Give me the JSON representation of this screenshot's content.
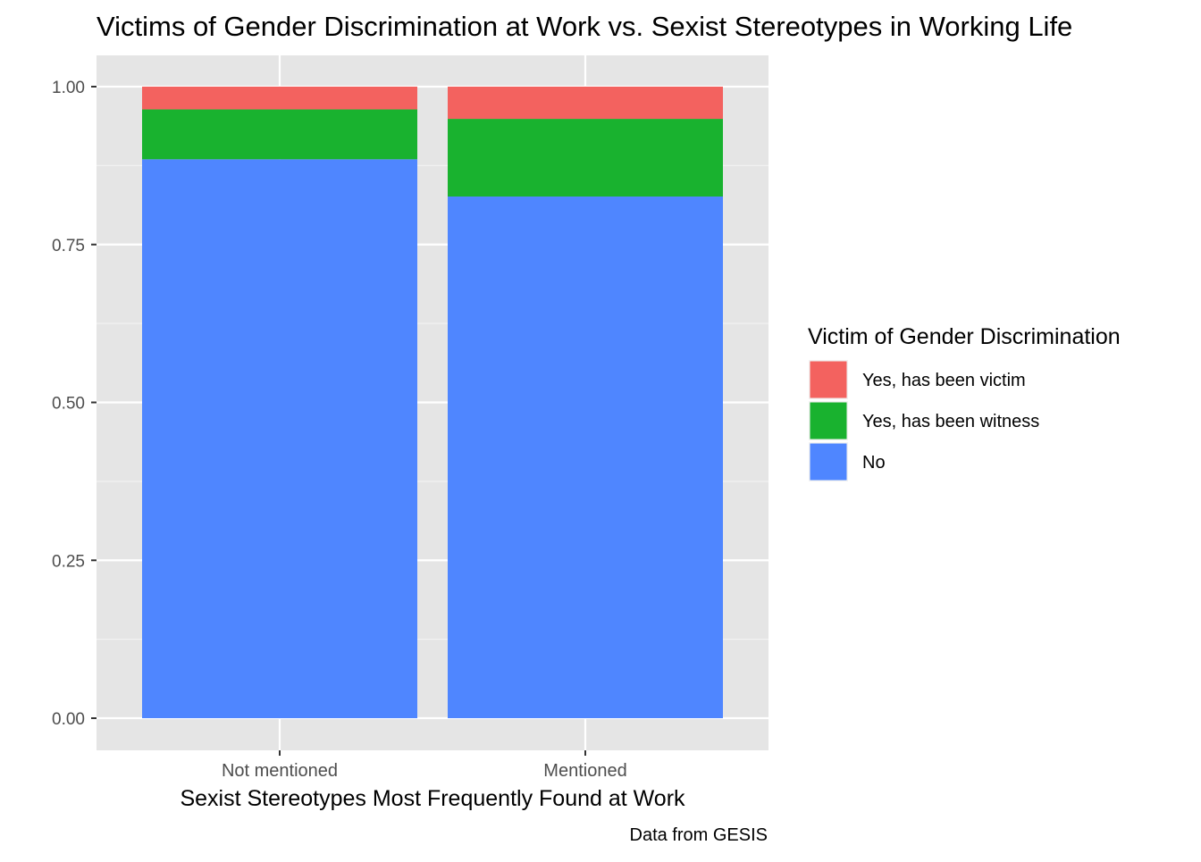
{
  "chart_data": {
    "type": "bar",
    "stacked": true,
    "title": "Victims of Gender Discrimination at Work vs. Sexist Stereotypes in Working Life",
    "xlabel": "Sexist Stereotypes Most Frequently Found at Work",
    "ylabel": "",
    "caption": "Data from GESIS",
    "categories": [
      "Not mentioned",
      "Mentioned"
    ],
    "ylim": [
      0,
      1
    ],
    "y_ticks": [
      "0.00",
      "0.25",
      "0.50",
      "0.75",
      "1.00"
    ],
    "y_tick_values": [
      0,
      0.25,
      0.5,
      0.75,
      1.0
    ],
    "legend_title": "Victim of Gender Discrimination",
    "legend_position": "right",
    "grid": true,
    "background": "#E5E5E5",
    "series": [
      {
        "name": "No",
        "color": "#4F86FF",
        "values": [
          0.885,
          0.826
        ]
      },
      {
        "name": "Yes, has been witness",
        "color": "#19B22F",
        "values": [
          0.079,
          0.123
        ]
      },
      {
        "name": "Yes, has been victim",
        "color": "#F3625F",
        "values": [
          0.036,
          0.051
        ]
      }
    ],
    "legend_order": [
      "Yes, has been victim",
      "Yes, has been witness",
      "No"
    ]
  }
}
